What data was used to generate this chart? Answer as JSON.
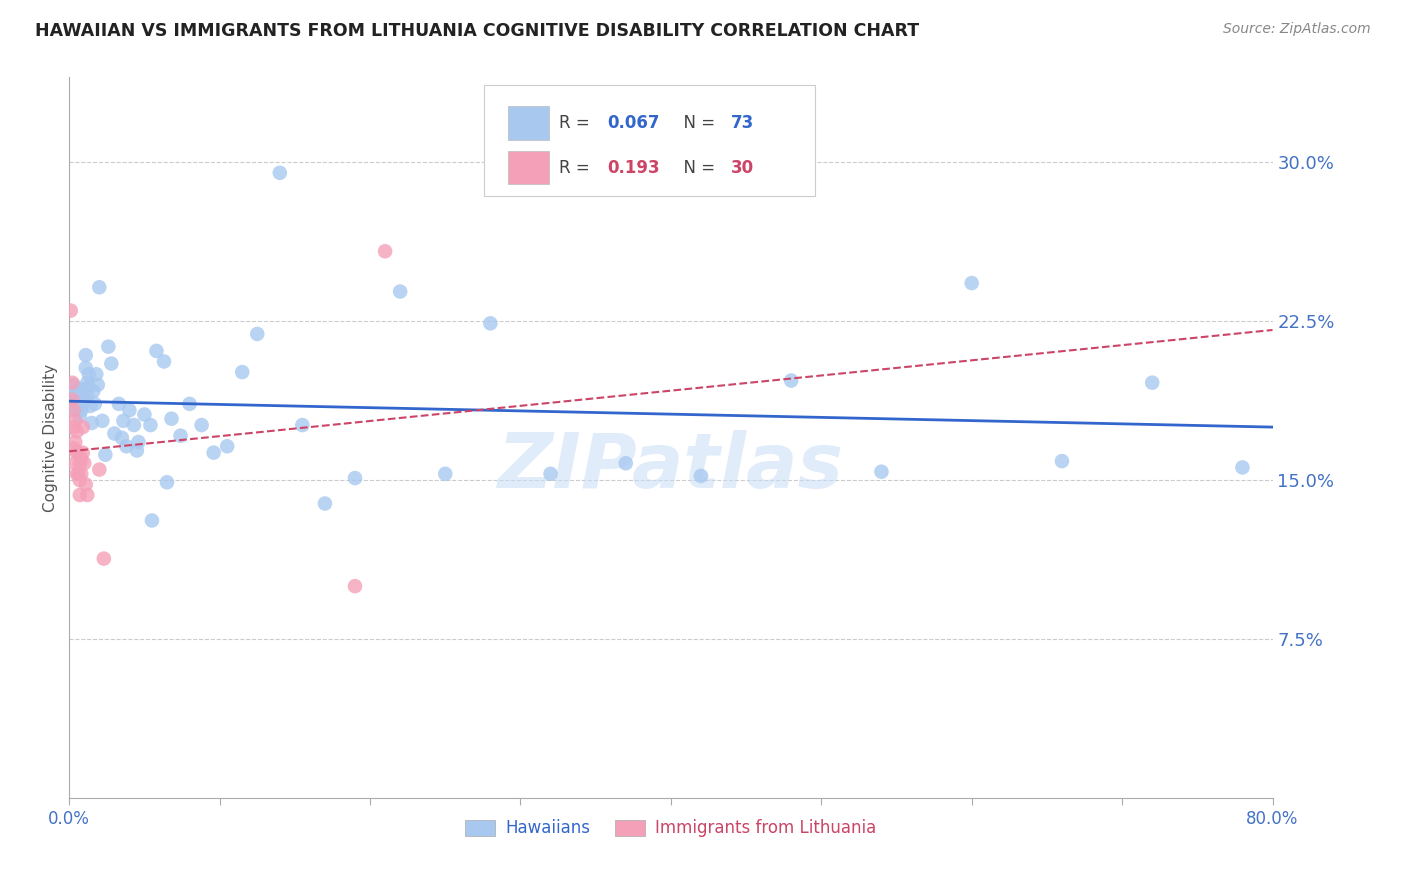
{
  "title": "HAWAIIAN VS IMMIGRANTS FROM LITHUANIA COGNITIVE DISABILITY CORRELATION CHART",
  "source": "Source: ZipAtlas.com",
  "ylabel": "Cognitive Disability",
  "right_yticks": [
    "30.0%",
    "22.5%",
    "15.0%",
    "7.5%"
  ],
  "right_ytick_vals": [
    0.3,
    0.225,
    0.15,
    0.075
  ],
  "xlim": [
    0.0,
    0.8
  ],
  "ylim": [
    0.0,
    0.34
  ],
  "watermark": "ZIPatlas",
  "hawaiians_color": "#A8C8F0",
  "lithuania_color": "#F4A0B8",
  "trend_blue": "#3366CC",
  "trend_pink": "#CC4466",
  "hawaiians_x": [
    0.002,
    0.003,
    0.004,
    0.004,
    0.005,
    0.005,
    0.006,
    0.006,
    0.007,
    0.007,
    0.007,
    0.008,
    0.008,
    0.009,
    0.009,
    0.01,
    0.01,
    0.011,
    0.011,
    0.012,
    0.012,
    0.013,
    0.013,
    0.014,
    0.015,
    0.016,
    0.017,
    0.018,
    0.019,
    0.02,
    0.022,
    0.024,
    0.026,
    0.028,
    0.03,
    0.033,
    0.036,
    0.038,
    0.04,
    0.043,
    0.046,
    0.05,
    0.054,
    0.058,
    0.063,
    0.068,
    0.074,
    0.08,
    0.088,
    0.096,
    0.105,
    0.115,
    0.125,
    0.14,
    0.155,
    0.17,
    0.19,
    0.22,
    0.25,
    0.28,
    0.32,
    0.37,
    0.42,
    0.48,
    0.54,
    0.6,
    0.66,
    0.72,
    0.78,
    0.035,
    0.045,
    0.055,
    0.065
  ],
  "hawaiians_y": [
    0.19,
    0.195,
    0.188,
    0.183,
    0.192,
    0.185,
    0.193,
    0.187,
    0.19,
    0.185,
    0.18,
    0.188,
    0.183,
    0.191,
    0.186,
    0.193,
    0.188,
    0.209,
    0.203,
    0.196,
    0.19,
    0.2,
    0.194,
    0.185,
    0.177,
    0.192,
    0.186,
    0.2,
    0.195,
    0.241,
    0.178,
    0.162,
    0.213,
    0.205,
    0.172,
    0.186,
    0.178,
    0.166,
    0.183,
    0.176,
    0.168,
    0.181,
    0.176,
    0.211,
    0.206,
    0.179,
    0.171,
    0.186,
    0.176,
    0.163,
    0.166,
    0.201,
    0.219,
    0.295,
    0.176,
    0.139,
    0.151,
    0.239,
    0.153,
    0.224,
    0.153,
    0.158,
    0.152,
    0.197,
    0.154,
    0.243,
    0.159,
    0.196,
    0.156,
    0.17,
    0.164,
    0.131,
    0.149
  ],
  "lithuania_x": [
    0.001,
    0.002,
    0.002,
    0.003,
    0.003,
    0.003,
    0.004,
    0.004,
    0.004,
    0.005,
    0.005,
    0.005,
    0.006,
    0.006,
    0.007,
    0.007,
    0.007,
    0.008,
    0.008,
    0.009,
    0.009,
    0.01,
    0.011,
    0.012,
    0.02,
    0.023,
    0.19,
    0.21
  ],
  "lithuania_y": [
    0.23,
    0.196,
    0.188,
    0.183,
    0.175,
    0.165,
    0.178,
    0.168,
    0.158,
    0.173,
    0.163,
    0.153,
    0.163,
    0.153,
    0.158,
    0.15,
    0.143,
    0.16,
    0.153,
    0.175,
    0.163,
    0.158,
    0.148,
    0.143,
    0.155,
    0.113,
    0.1,
    0.258
  ]
}
